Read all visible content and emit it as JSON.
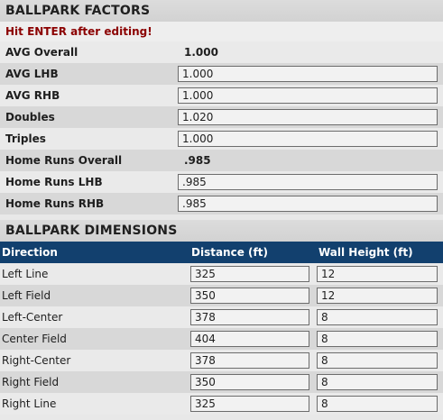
{
  "factors": {
    "title": "BALLPARK FACTORS",
    "notice": "Hit ENTER after editing!",
    "rows": [
      {
        "label": "AVG Overall",
        "value": "1.000",
        "editable": false
      },
      {
        "label": "AVG LHB",
        "value": "1.000",
        "editable": true
      },
      {
        "label": "AVG RHB",
        "value": "1.000",
        "editable": true
      },
      {
        "label": "Doubles",
        "value": "1.020",
        "editable": true
      },
      {
        "label": "Triples",
        "value": "1.000",
        "editable": true
      },
      {
        "label": "Home Runs Overall",
        "value": ".985",
        "editable": false
      },
      {
        "label": "Home Runs LHB",
        "value": ".985",
        "editable": true
      },
      {
        "label": "Home Runs RHB",
        "value": ".985",
        "editable": true
      }
    ]
  },
  "dimensions": {
    "title": "BALLPARK DIMENSIONS",
    "columns": [
      "Direction",
      "Distance (ft)",
      "Wall Height (ft)"
    ],
    "rows": [
      {
        "direction": "Left Line",
        "distance": "325",
        "wall": "12"
      },
      {
        "direction": "Left Field",
        "distance": "350",
        "wall": "12"
      },
      {
        "direction": "Left-Center",
        "distance": "378",
        "wall": "8"
      },
      {
        "direction": "Center Field",
        "distance": "404",
        "wall": "8"
      },
      {
        "direction": "Right-Center",
        "distance": "378",
        "wall": "8"
      },
      {
        "direction": "Right Field",
        "distance": "350",
        "wall": "8"
      },
      {
        "direction": "Right Line",
        "distance": "325",
        "wall": "8"
      }
    ]
  },
  "colors": {
    "header_bg": "#12406e",
    "notice": "#8b0000"
  }
}
